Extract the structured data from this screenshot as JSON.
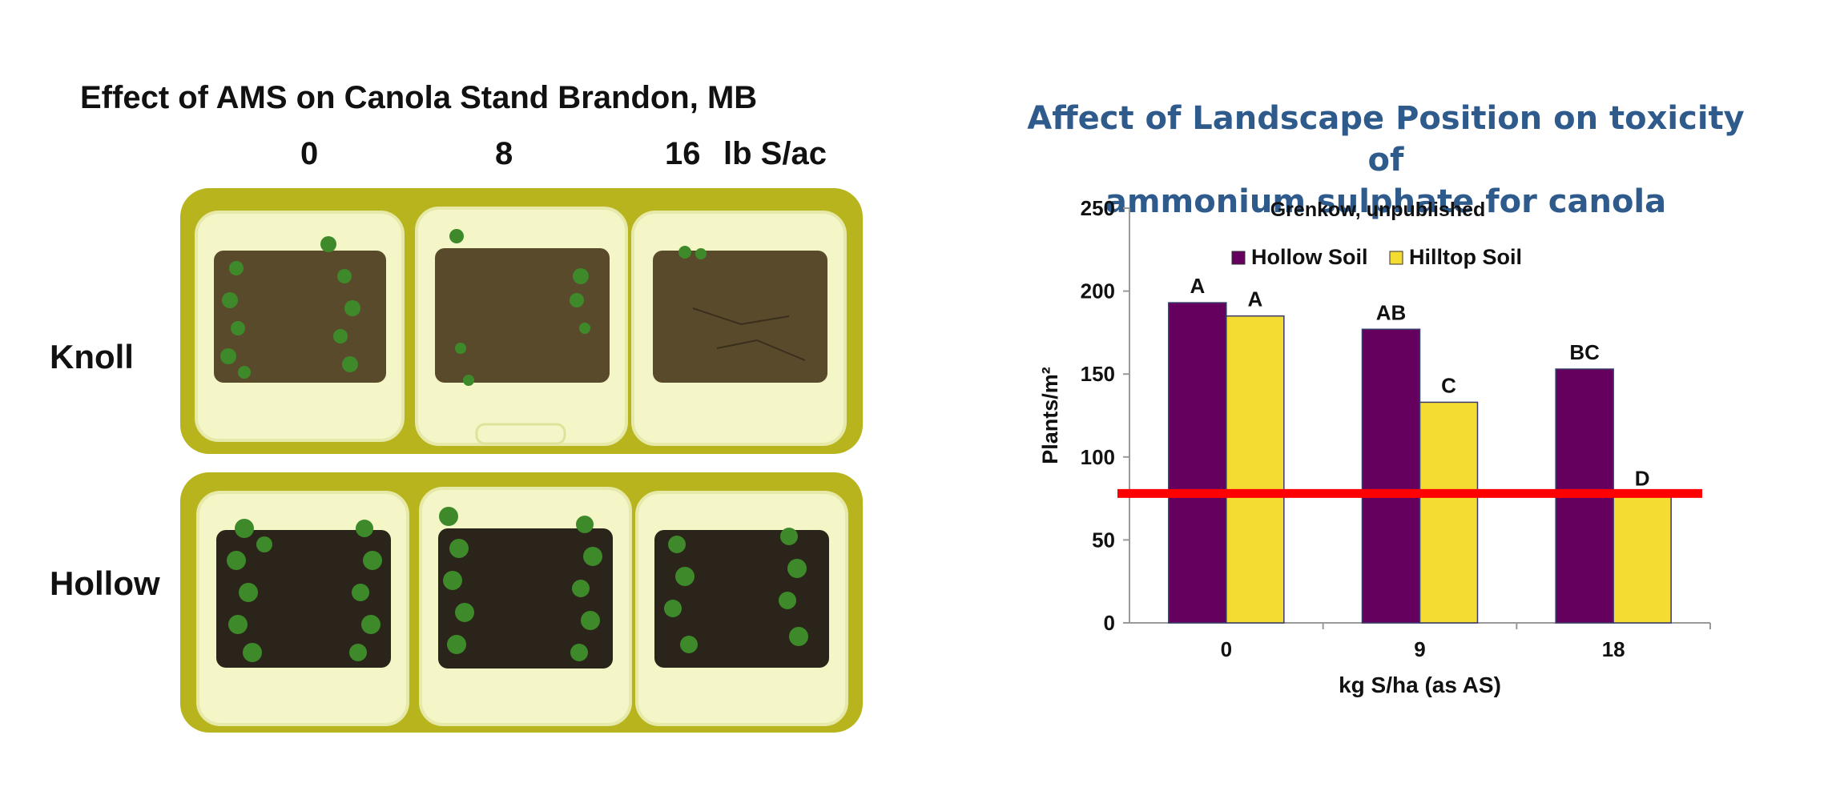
{
  "left_panel": {
    "title": "Effect of AMS on Canola Stand Brandon, MB",
    "rates": [
      "0",
      "8",
      "16",
      "lb S/ac"
    ],
    "rows": [
      "Knoll",
      "Hollow"
    ]
  },
  "right_panel": {
    "title_line1": "Affect of Landscape Position on toxicity of",
    "title_line2": "ammonium sulphate for canola"
  },
  "colors": {
    "hollow": "#66005e",
    "hilltop": "#f5dc33",
    "threshold": "#ff0000",
    "title_blue": "#2f5b8c",
    "photo_bg": "#b8b41e",
    "bucket": "#f4f6c8",
    "soil_dry": "#5a4a2c",
    "soil_wet": "#2a241a",
    "plant": "#3e8a2a"
  },
  "chart_data": {
    "type": "bar",
    "subtitle": "Grenkow, unpublished",
    "categories": [
      "0",
      "9",
      "18"
    ],
    "series": [
      {
        "name": "Hollow Soil",
        "values": [
          193,
          177,
          153
        ],
        "labels": [
          "A",
          "AB",
          "BC"
        ]
      },
      {
        "name": "Hilltop Soil",
        "values": [
          185,
          133,
          77
        ],
        "labels": [
          "A",
          "C",
          "D"
        ]
      }
    ],
    "xlabel": "kg S/ha (as AS)",
    "ylabel": "Plants/m²",
    "ylim": [
      0,
      250
    ],
    "yticks": [
      "0",
      "50",
      "100",
      "150",
      "200",
      "250"
    ],
    "threshold": 78,
    "legend_position": "top"
  }
}
